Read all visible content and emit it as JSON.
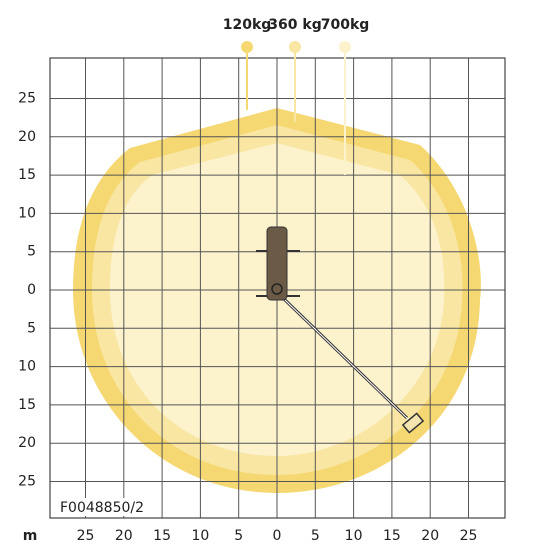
{
  "legend": [
    {
      "label": "120kg"
    },
    {
      "label": "360 kg"
    },
    {
      "label": "700kg"
    }
  ],
  "y_axis": {
    "labels": [
      "25",
      "20",
      "15",
      "10",
      "5",
      "0",
      "5",
      "10",
      "15",
      "20",
      "25"
    ]
  },
  "x_axis": {
    "unit": "m",
    "labels": [
      "25",
      "20",
      "15",
      "10",
      "5",
      "0",
      "5",
      "10",
      "15",
      "20",
      "25"
    ]
  },
  "drawing_code": "F0048850/2"
}
